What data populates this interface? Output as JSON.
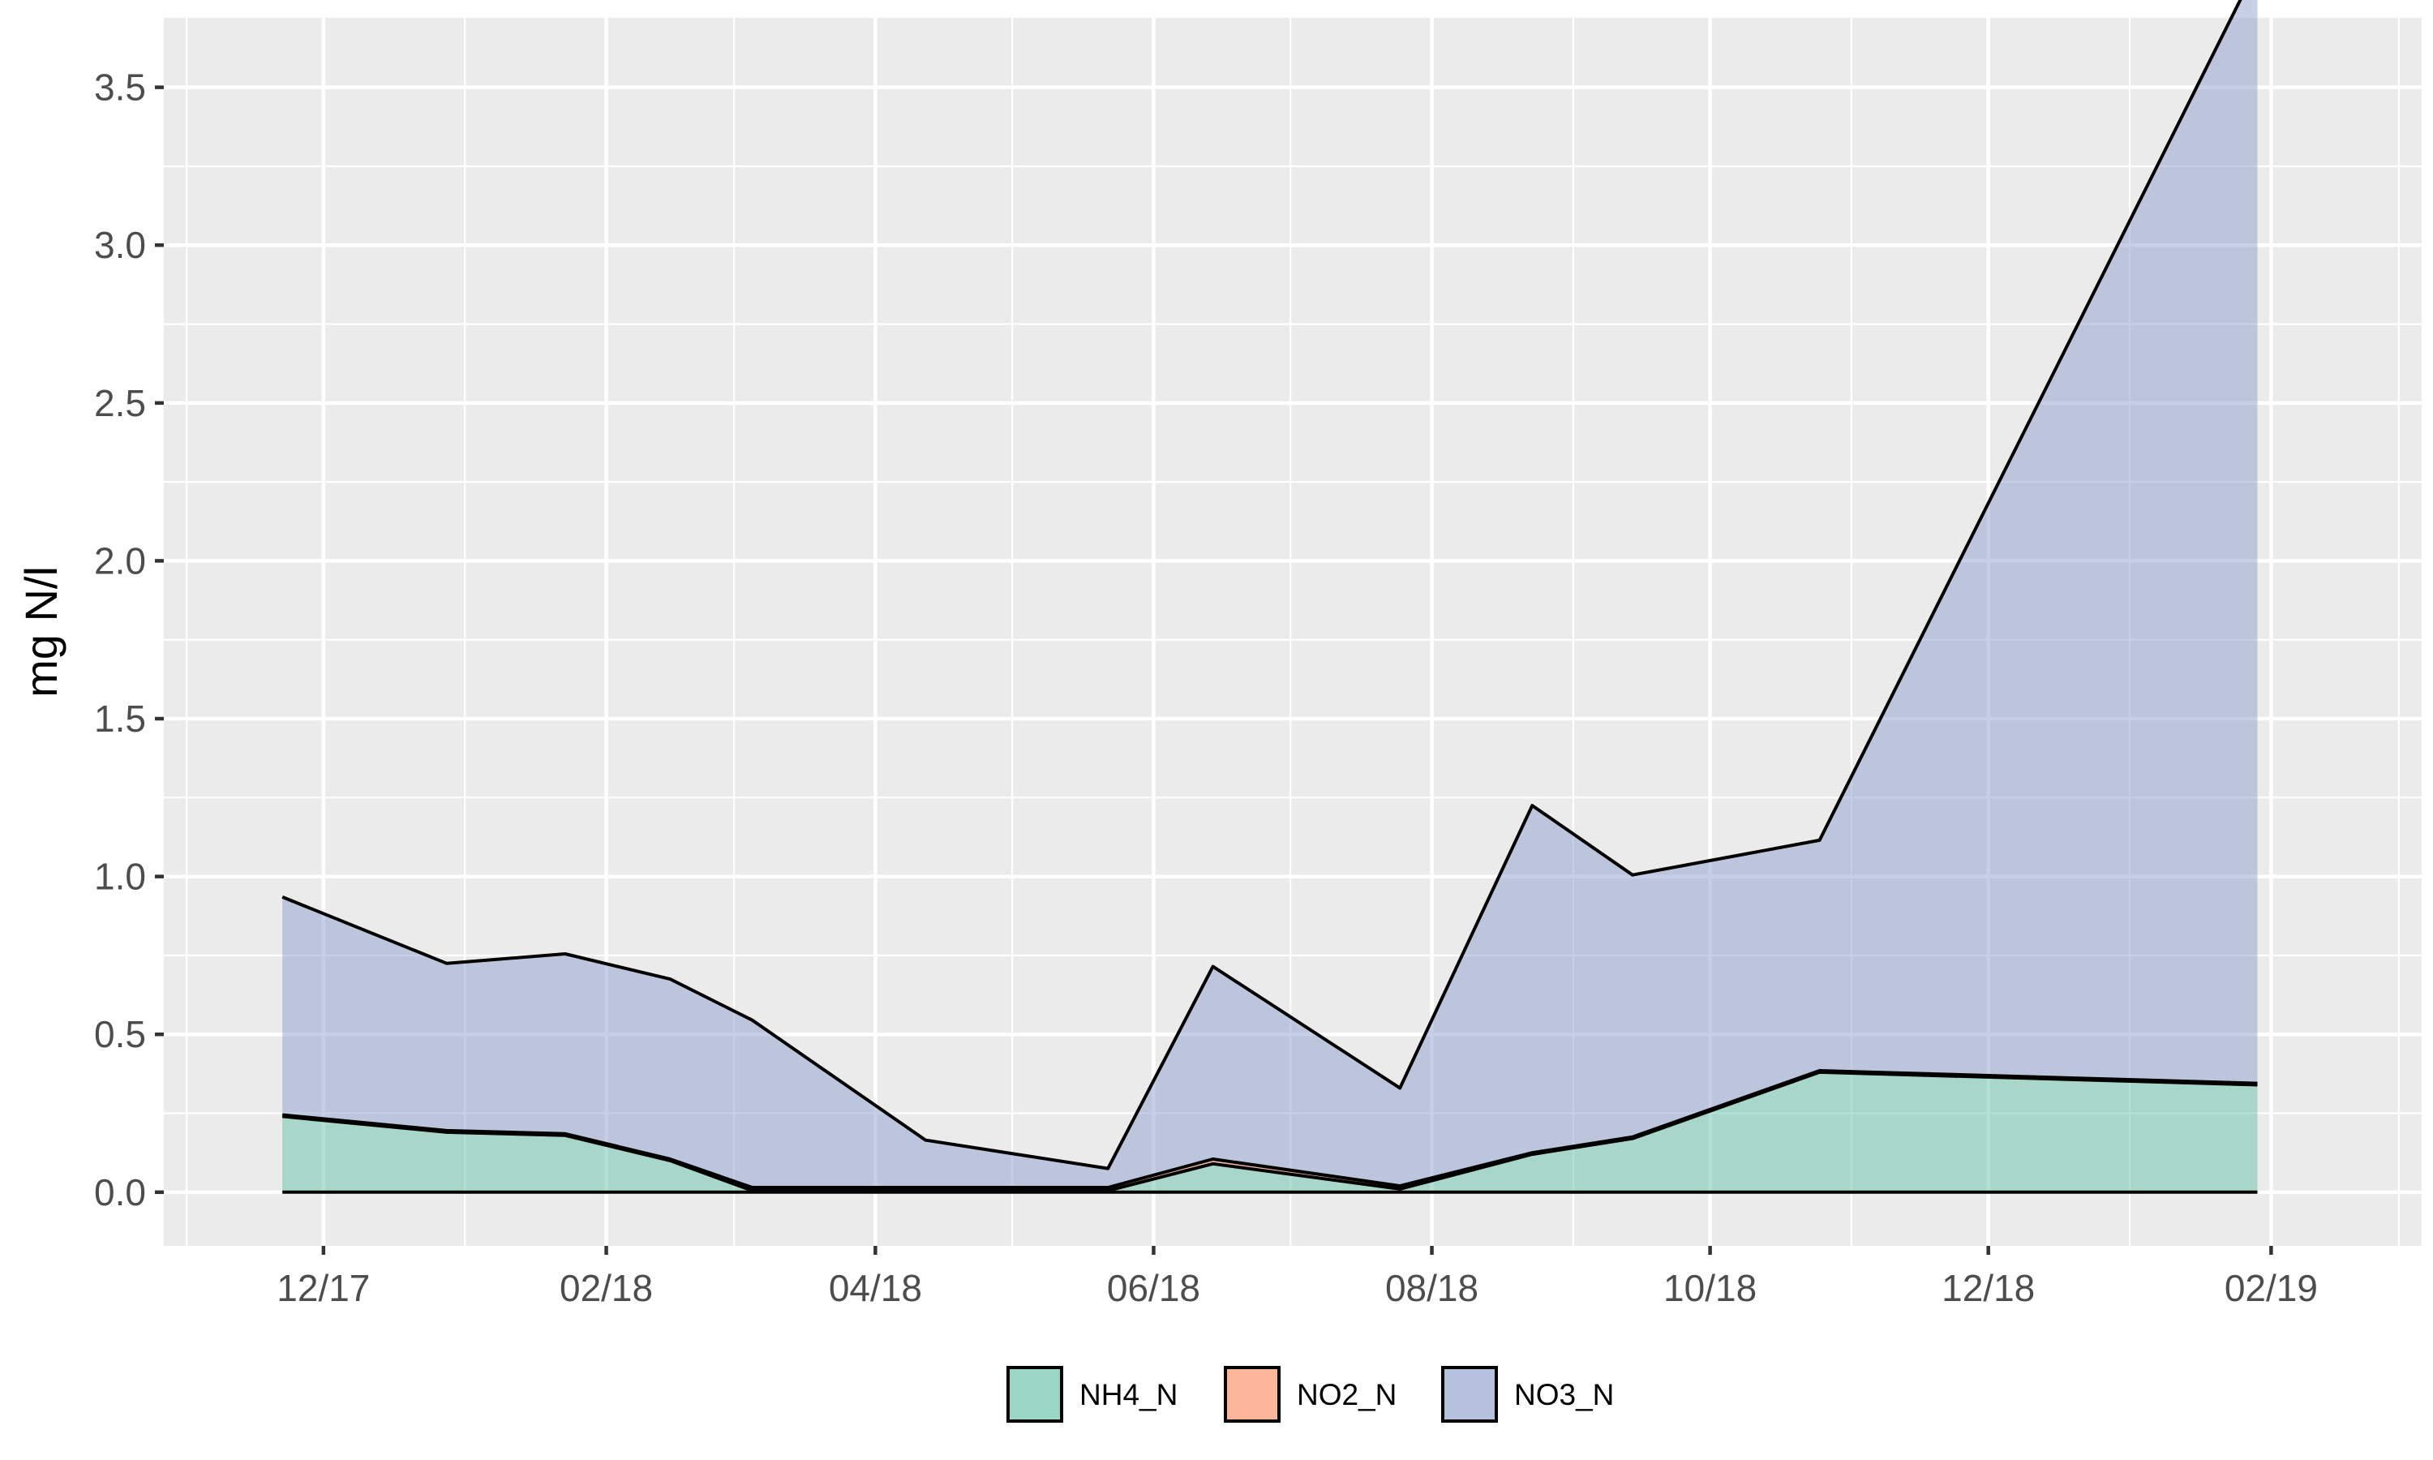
{
  "chart_data": {
    "type": "area",
    "title": "",
    "xlabel": "",
    "ylabel": "mg N/l",
    "x_tick_labels": [
      "12/17",
      "02/18",
      "04/18",
      "06/18",
      "08/18",
      "10/18",
      "12/18",
      "02/19"
    ],
    "x_tick_dates": [
      "2017-12-01",
      "2018-02-01",
      "2018-04-01",
      "2018-06-01",
      "2018-08-01",
      "2018-10-01",
      "2018-12-01",
      "2019-02-01"
    ],
    "x_minor_dates": [
      "2017-11-01",
      "2018-01-01",
      "2018-03-01",
      "2018-05-01",
      "2018-07-01",
      "2018-09-01",
      "2018-11-01",
      "2019-01-01",
      "2019-03-01"
    ],
    "xlim": [
      "2017-10-27",
      "2019-03-06"
    ],
    "ylim": [
      -0.17,
      3.72
    ],
    "y_ticks": [
      0,
      0.5,
      1,
      1.5,
      2,
      2.5,
      3,
      3.5
    ],
    "y_tick_labels": [
      "0.0",
      "0.5",
      "1.0",
      "1.5",
      "2.0",
      "2.5",
      "3.0",
      "3.5"
    ],
    "grid": true,
    "legend_position": "bottom",
    "dates": [
      "2017-11-22",
      "2017-12-28",
      "2018-01-23",
      "2018-02-15",
      "2018-03-05",
      "2018-04-12",
      "2018-05-22",
      "2018-06-14",
      "2018-07-25",
      "2018-08-23",
      "2018-09-14",
      "2018-10-25",
      "2019-01-29"
    ],
    "series": [
      {
        "name": "NH4_N",
        "color": "#66c2a5",
        "values": [
          0.24,
          0.19,
          0.18,
          0.1,
          0.005,
          0.005,
          0.005,
          0.09,
          0.01,
          0.12,
          0.17,
          0.38,
          0.34
        ]
      },
      {
        "name": "NO2_N",
        "color": "#fc8d62",
        "values": [
          0.005,
          0.005,
          0.005,
          0.005,
          0.01,
          0.01,
          0.01,
          0.015,
          0.01,
          0.005,
          0.005,
          0.005,
          0.005
        ]
      },
      {
        "name": "NO3_N",
        "color": "#8da0cb",
        "values": [
          0.69,
          0.53,
          0.57,
          0.57,
          0.53,
          0.15,
          0.06,
          0.61,
          0.31,
          1.1,
          0.83,
          0.73,
          3.54
        ]
      }
    ]
  }
}
